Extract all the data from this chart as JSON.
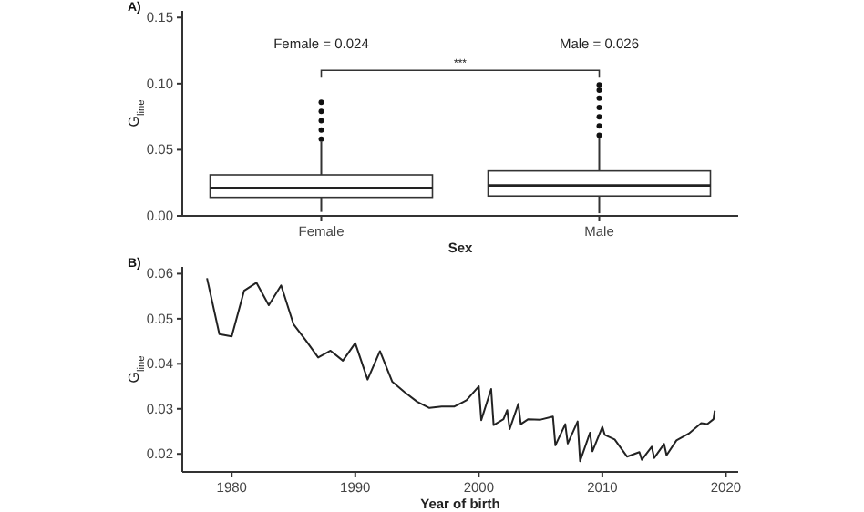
{
  "chart_data": [
    {
      "type": "box",
      "categories": [
        "Female",
        "Male"
      ],
      "xlabel": "Sex",
      "ylabel": "G$_{line}$",
      "boxes": [
        {
          "low": 0.003,
          "q1": 0.014,
          "median": 0.021,
          "q3": 0.031,
          "high": 0.056,
          "outliers": [
            0.058,
            0.065,
            0.072,
            0.079,
            0.086
          ]
        },
        {
          "low": 0.002,
          "q1": 0.015,
          "median": 0.023,
          "q3": 0.034,
          "high": 0.059,
          "outliers": [
            0.061,
            0.068,
            0.075,
            0.082,
            0.089,
            0.095,
            0.099
          ]
        }
      ],
      "ylim": [
        0,
        0.155
      ],
      "yticks": [
        {
          "value": 0,
          "label": "0.00"
        },
        {
          "value": 0.05,
          "label": "0.05"
        },
        {
          "value": 0.1,
          "label": "0.10"
        },
        {
          "value": 0.15,
          "label": "0.15"
        }
      ],
      "annotations": [
        "A)",
        "Female = 0.024",
        "Male = 0.026",
        "***"
      ],
      "grid": false
    },
    {
      "type": "line",
      "xlabel": "Year of birth",
      "ylabel": "G$_{line}$",
      "x": [
        1978,
        1979,
        1980,
        1981,
        1982,
        1983,
        1984,
        1985,
        1986,
        1987,
        1988,
        1989,
        1990,
        1991,
        1992,
        1993,
        1994,
        1995,
        1996,
        1997,
        1998,
        1999,
        2000,
        2000.2,
        2001,
        2001.2,
        2002,
        2002.3,
        2002.5,
        2003.2,
        2003.4,
        2004,
        2005,
        2006,
        2006.2,
        2007,
        2007.2,
        2008,
        2008.2,
        2009,
        2009.2,
        2010,
        2010.2,
        2011,
        2012,
        2013,
        2013.2,
        2014,
        2014.2,
        2015,
        2015.2,
        2016,
        2017,
        2018,
        2018.5,
        2019,
        2019.1
      ],
      "values": [
        0.059,
        0.0466,
        0.0461,
        0.0562,
        0.058,
        0.053,
        0.0574,
        0.0488,
        0.0452,
        0.0414,
        0.0429,
        0.0407,
        0.0446,
        0.0365,
        0.0428,
        0.036,
        0.0337,
        0.0316,
        0.0302,
        0.0305,
        0.0305,
        0.0319,
        0.035,
        0.0275,
        0.0344,
        0.0264,
        0.0277,
        0.0297,
        0.0255,
        0.0311,
        0.0266,
        0.0277,
        0.0276,
        0.0283,
        0.0219,
        0.0266,
        0.0223,
        0.0272,
        0.0184,
        0.0247,
        0.0206,
        0.026,
        0.0242,
        0.0232,
        0.0194,
        0.0204,
        0.0187,
        0.0216,
        0.0191,
        0.0222,
        0.0197,
        0.023,
        0.0245,
        0.0268,
        0.0266,
        0.0277,
        0.0296
      ],
      "color": "#222222",
      "xlim": [
        1976,
        2021
      ],
      "xticks": [
        1980,
        1990,
        2000,
        2010,
        2020
      ],
      "ylim": [
        0.016,
        0.0615
      ],
      "yticks": [
        {
          "value": 0.02,
          "label": "0.02"
        },
        {
          "value": 0.03,
          "label": "0.03"
        },
        {
          "value": 0.04,
          "label": "0.04"
        },
        {
          "value": 0.05,
          "label": "0.05"
        },
        {
          "value": 0.06,
          "label": "0.06"
        }
      ],
      "annotations": [
        "B)"
      ],
      "grid": false
    }
  ]
}
